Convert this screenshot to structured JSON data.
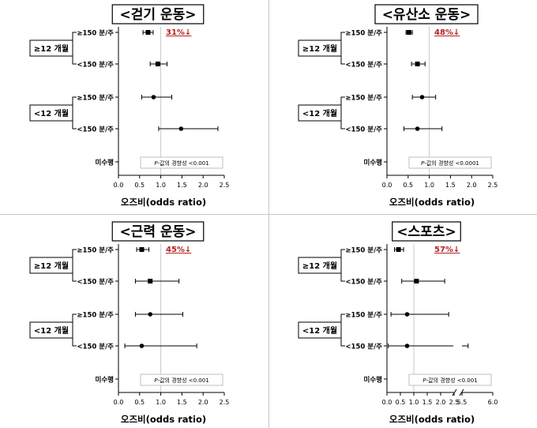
{
  "chart_data": [
    {
      "type": "forest",
      "title": "<걷기 운동>",
      "xlabel": "오즈비(odds ratio)",
      "xlim": [
        0,
        2.5
      ],
      "xticks": [
        "0.0",
        "0.5",
        "1.0",
        "1.5",
        "2.0",
        "2.5"
      ],
      "reference_line": 1.0,
      "groups": [
        {
          "label": "≥12 개월",
          "rows": [
            0,
            1
          ]
        },
        {
          "label": "<12 개월",
          "rows": [
            2,
            3
          ]
        }
      ],
      "rows": [
        {
          "label": "≥150 분/주",
          "or": 0.7,
          "lo": 0.58,
          "hi": 0.82,
          "marker": "square"
        },
        {
          "label": "<150 분/주",
          "or": 0.93,
          "lo": 0.75,
          "hi": 1.15,
          "marker": "square"
        },
        {
          "label": "≥150 분/주",
          "or": 0.83,
          "lo": 0.55,
          "hi": 1.26,
          "marker": "circle"
        },
        {
          "label": "<150 분/주",
          "or": 1.48,
          "lo": 0.95,
          "hi": 2.35,
          "marker": "circle"
        },
        {
          "label": "미수행",
          "or": 1.0,
          "lo": null,
          "hi": null,
          "marker": "circle"
        }
      ],
      "reduction_label": "31%↓",
      "p_trend": "𝘗-값의 경향성 <0.001"
    },
    {
      "type": "forest",
      "title": "<유산소 운동>",
      "xlabel": "오즈비(odds ratio)",
      "xlim": [
        0,
        2.5
      ],
      "xticks": [
        "0.0",
        "0.5",
        "1.0",
        "1.5",
        "2.0",
        "2.5"
      ],
      "reference_line": 1.0,
      "groups": [
        {
          "label": "≥12 개월",
          "rows": [
            0,
            1
          ]
        },
        {
          "label": "<12 개월",
          "rows": [
            2,
            3
          ]
        }
      ],
      "rows": [
        {
          "label": "≥150 분/주",
          "or": 0.52,
          "lo": 0.45,
          "hi": 0.6,
          "marker": "square"
        },
        {
          "label": "<150 분/주",
          "or": 0.72,
          "lo": 0.58,
          "hi": 0.9,
          "marker": "square"
        },
        {
          "label": "≥150 분/주",
          "or": 0.83,
          "lo": 0.6,
          "hi": 1.15,
          "marker": "circle"
        },
        {
          "label": "<150 분/주",
          "or": 0.72,
          "lo": 0.4,
          "hi": 1.3,
          "marker": "circle"
        },
        {
          "label": "미수행",
          "or": 1.0,
          "lo": null,
          "hi": null,
          "marker": "circle"
        }
      ],
      "reduction_label": "48%↓",
      "p_trend": "𝘗-값의 경향성 <0.0001"
    },
    {
      "type": "forest",
      "title": "<근력 운동>",
      "xlabel": "오즈비(odds ratio)",
      "xlim": [
        0,
        2.5
      ],
      "xticks": [
        "0.0",
        "0.5",
        "1.0",
        "1.5",
        "2.0",
        "2.5"
      ],
      "reference_line": 1.0,
      "groups": [
        {
          "label": "≥12 개월",
          "rows": [
            0,
            1
          ]
        },
        {
          "label": "<12 개월",
          "rows": [
            2,
            3
          ]
        }
      ],
      "rows": [
        {
          "label": "≥150 분/주",
          "or": 0.55,
          "lo": 0.43,
          "hi": 0.72,
          "marker": "square"
        },
        {
          "label": "<150 분/주",
          "or": 0.75,
          "lo": 0.4,
          "hi": 1.43,
          "marker": "square"
        },
        {
          "label": "≥150 분/주",
          "or": 0.75,
          "lo": 0.4,
          "hi": 1.52,
          "marker": "circle"
        },
        {
          "label": "<150 분/주",
          "or": 0.55,
          "lo": 0.15,
          "hi": 1.85,
          "marker": "circle"
        },
        {
          "label": "미수행",
          "or": 1.0,
          "lo": null,
          "hi": null,
          "marker": "circle"
        }
      ],
      "reduction_label": "45%↓",
      "p_trend": "𝘗-값의 경향성 <0.001"
    },
    {
      "type": "forest",
      "title": "<스포츠>",
      "xlabel": "오즈비(odds ratio)",
      "axis_break": true,
      "xlim": [
        0,
        6.0
      ],
      "xticks": [
        "0.0",
        "0.5",
        "1.0",
        "1.5",
        "2.0",
        "2.5",
        "5.5",
        "6.0"
      ],
      "reference_line": 1.0,
      "groups": [
        {
          "label": "≥12 개월",
          "rows": [
            0,
            1
          ]
        },
        {
          "label": "<12 개월",
          "rows": [
            2,
            3
          ]
        }
      ],
      "rows": [
        {
          "label": "≥150 분/주",
          "or": 0.43,
          "lo": 0.28,
          "hi": 0.62,
          "marker": "square"
        },
        {
          "label": "<150 분/주",
          "or": 1.1,
          "lo": 0.55,
          "hi": 2.15,
          "marker": "square"
        },
        {
          "label": "≥150 분/주",
          "or": 0.75,
          "lo": 0.15,
          "hi": 2.3,
          "marker": "circle"
        },
        {
          "label": "<150 분/주",
          "or": 0.75,
          "lo": 0.05,
          "hi": 5.6,
          "marker": "circle"
        },
        {
          "label": "미수행",
          "or": 1.0,
          "lo": null,
          "hi": null,
          "marker": "circle"
        }
      ],
      "reduction_label": "57%↓",
      "p_trend": "𝘗-값의 경향성 <0.001"
    }
  ],
  "colors": {
    "reduction": "#b22222",
    "reference_line": "#c8c8c8",
    "marker": "#000000",
    "divider": "#c8c8c8"
  }
}
